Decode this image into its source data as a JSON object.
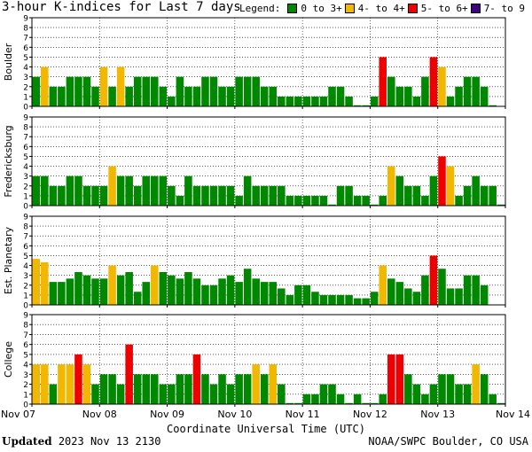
{
  "title": "3-hour K-indices for Last 7 days",
  "legend": {
    "label": "Legend:",
    "items": [
      {
        "label": "0 to 3+",
        "color": "#008800"
      },
      {
        "label": "4- to 4+",
        "color": "#F0B800"
      },
      {
        "label": "5- to 6+",
        "color": "#EE0000"
      },
      {
        "label": "7- to 9",
        "color": "#400080"
      }
    ]
  },
  "xlabel": "Coordinate Universal Time (UTC)",
  "footer": {
    "updated_label": "Updated",
    "updated_value": "2023 Nov 13 2130",
    "source": "NOAA/SWPC Boulder, CO USA"
  },
  "chart_data": [
    {
      "type": "bar",
      "title": "Boulder",
      "ylim": [
        0,
        9
      ],
      "yticks": [
        "0",
        "1",
        "2",
        "3",
        "4",
        "5",
        "6",
        "7",
        "8",
        "9"
      ],
      "xticks": [
        "Nov 07",
        "Nov 08",
        "Nov 09",
        "Nov 10",
        "Nov 11",
        "Nov 12",
        "Nov 13",
        "Nov 14"
      ],
      "values": [
        3,
        4,
        2,
        2,
        3,
        3,
        3,
        2,
        4,
        2,
        4,
        2,
        3,
        3,
        3,
        2,
        1,
        3,
        2,
        2,
        3,
        3,
        2,
        2,
        3,
        3,
        3,
        2,
        2,
        1,
        1,
        1,
        1,
        1,
        1,
        2,
        2,
        1,
        0,
        0,
        1,
        5,
        3,
        2,
        2,
        1,
        3,
        5,
        4,
        1,
        2,
        3,
        3,
        2,
        0
      ]
    },
    {
      "type": "bar",
      "title": "Fredericksburg",
      "ylim": [
        0,
        9
      ],
      "yticks": [
        "0",
        "1",
        "2",
        "3",
        "4",
        "5",
        "6",
        "7",
        "8",
        "9"
      ],
      "xticks": [
        "Nov 07",
        "Nov 08",
        "Nov 09",
        "Nov 10",
        "Nov 11",
        "Nov 12",
        "Nov 13",
        "Nov 14"
      ],
      "values": [
        3,
        3,
        2,
        2,
        3,
        3,
        2,
        2,
        2,
        4,
        3,
        3,
        2,
        3,
        3,
        3,
        2,
        1,
        3,
        2,
        2,
        2,
        2,
        2,
        1,
        3,
        2,
        2,
        2,
        2,
        1,
        1,
        1,
        1,
        1,
        0,
        2,
        2,
        1,
        1,
        0,
        1,
        4,
        3,
        2,
        2,
        1,
        3,
        5,
        4,
        1,
        2,
        3,
        2,
        2,
        0
      ]
    },
    {
      "type": "bar",
      "title": "Est. Planetary",
      "ylim": [
        0,
        9
      ],
      "yticks": [
        "0",
        "1",
        "2",
        "3",
        "4",
        "5",
        "6",
        "7",
        "8",
        "9"
      ],
      "xticks": [
        "Nov 07",
        "Nov 08",
        "Nov 09",
        "Nov 10",
        "Nov 11",
        "Nov 12",
        "Nov 13",
        "Nov 14"
      ],
      "values": [
        4.67,
        4.33,
        2.33,
        2.33,
        2.67,
        3.33,
        3.0,
        2.67,
        2.67,
        4.0,
        3.0,
        3.33,
        1.33,
        2.33,
        4.0,
        3.33,
        3.0,
        2.67,
        3.33,
        2.67,
        2.0,
        2.0,
        2.67,
        3.0,
        2.33,
        3.67,
        2.67,
        2.33,
        2.33,
        1.67,
        1.0,
        2.0,
        2.0,
        1.33,
        1.0,
        1.0,
        1.0,
        1.0,
        0.67,
        0.67,
        1.33,
        4.0,
        2.67,
        2.33,
        1.67,
        1.33,
        3.0,
        5.0,
        3.67,
        1.67,
        1.67,
        3.0,
        3.0,
        2.0
      ]
    },
    {
      "type": "bar",
      "title": "College",
      "ylim": [
        0,
        9
      ],
      "yticks": [
        "0",
        "1",
        "2",
        "3",
        "4",
        "5",
        "6",
        "7",
        "8",
        "9"
      ],
      "xticks": [
        "Nov 07",
        "Nov 08",
        "Nov 09",
        "Nov 10",
        "Nov 11",
        "Nov 12",
        "Nov 13",
        "Nov 14"
      ],
      "values": [
        4,
        4,
        2,
        4,
        4,
        5,
        4,
        2,
        3,
        3,
        2,
        6,
        3,
        3,
        3,
        2,
        2,
        3,
        3,
        5,
        3,
        2,
        3,
        2,
        3,
        3,
        4,
        3,
        4,
        2,
        0,
        0,
        1,
        1,
        2,
        2,
        1,
        0,
        1,
        0,
        0,
        1,
        5,
        5,
        3,
        2,
        1,
        2,
        3,
        3,
        2,
        2,
        4,
        3,
        1,
        0
      ]
    }
  ]
}
